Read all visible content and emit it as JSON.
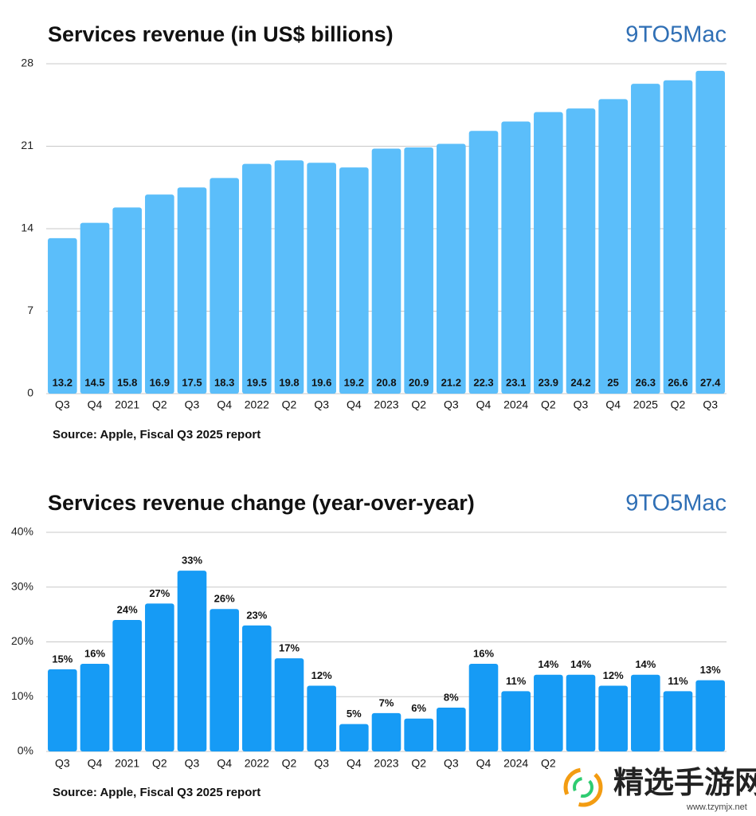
{
  "chart_data": [
    {
      "type": "bar",
      "title": "Services revenue (in US$ billions)",
      "logo": "9TO5Mac",
      "source": "Source: Apple, Fiscal Q3 2025 report",
      "categories": [
        "Q3",
        "Q4",
        "2021",
        "Q2",
        "Q3",
        "Q4",
        "2022",
        "Q2",
        "Q3",
        "Q4",
        "2023",
        "Q2",
        "Q3",
        "Q4",
        "2024",
        "Q2",
        "Q3",
        "Q4",
        "2025",
        "Q2",
        "Q3"
      ],
      "values": [
        13.2,
        14.5,
        15.8,
        16.9,
        17.5,
        18.3,
        19.5,
        19.8,
        19.6,
        19.2,
        20.8,
        20.9,
        21.2,
        22.3,
        23.1,
        23.9,
        24.2,
        25,
        26.3,
        26.6,
        27.4
      ],
      "color": "#5bbefa",
      "ylim": [
        0,
        28
      ],
      "yticks": [
        0,
        7,
        14,
        21,
        28
      ],
      "grid": true
    },
    {
      "type": "bar",
      "title": "Services revenue change (year-over-year)",
      "logo": "9TO5Mac",
      "source": "Source: Apple, Fiscal Q3 2025 report",
      "categories": [
        "Q3",
        "Q4",
        "2021",
        "Q2",
        "Q3",
        "Q4",
        "2022",
        "Q2",
        "Q3",
        "Q4",
        "2023",
        "Q2",
        "Q3",
        "Q4",
        "2024",
        "Q2",
        null,
        null,
        null,
        null,
        null
      ],
      "values": [
        15,
        16,
        24,
        27,
        33,
        26,
        23,
        17,
        12,
        5,
        7,
        6,
        8,
        16,
        11,
        14,
        14,
        12,
        14,
        11,
        13
      ],
      "value_labels": [
        "15%",
        "16%",
        "24%",
        "27%",
        "33%",
        "26%",
        "23%",
        "17%",
        "12%",
        "5%",
        "7%",
        "6%",
        "8%",
        "16%",
        "11%",
        "14%",
        "14%",
        "12%",
        "14%",
        "11%",
        "13%"
      ],
      "color": "#169bf5",
      "ylim": [
        0,
        40
      ],
      "yticks": [
        {
          "value": 0,
          "label": "0%"
        },
        {
          "value": 10,
          "label": "10%"
        },
        {
          "value": 20,
          "label": "20%"
        },
        {
          "value": 30,
          "label": "30%"
        },
        {
          "value": 40,
          "label": "40%"
        }
      ],
      "grid": true
    }
  ],
  "watermark": {
    "text": "精选手游网",
    "url": "www.tzymjx.net"
  }
}
